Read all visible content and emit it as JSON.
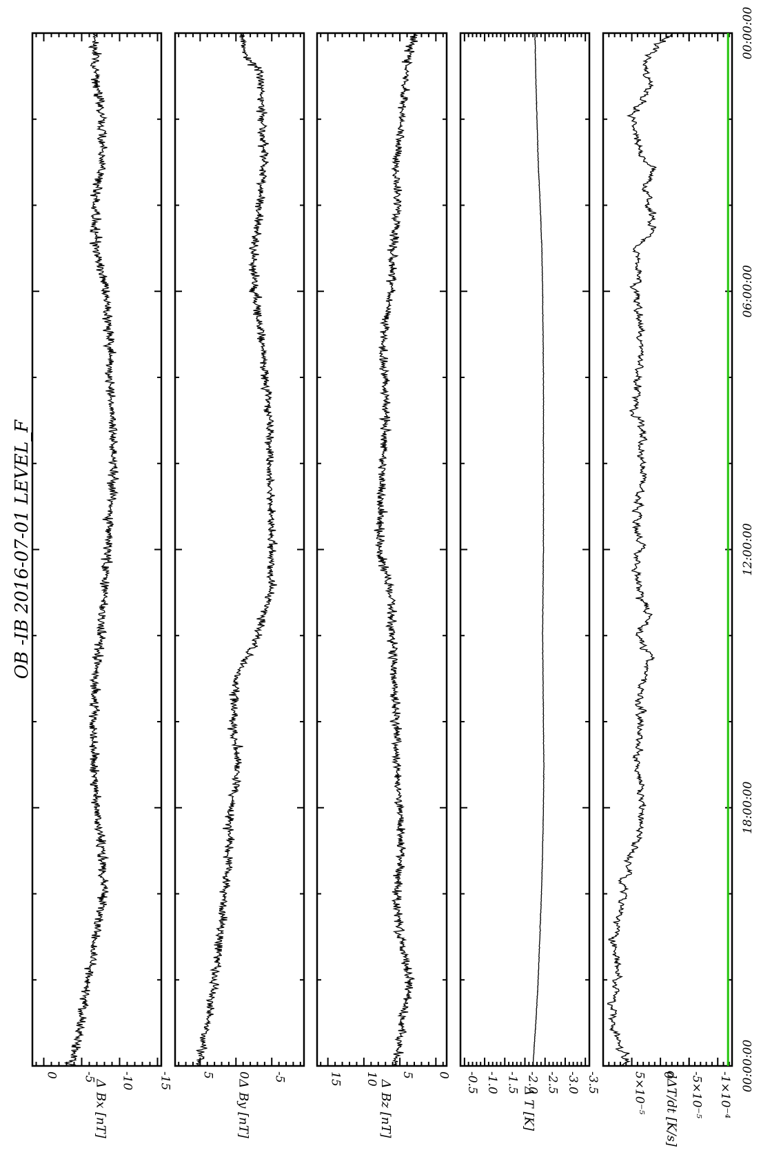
{
  "chart_data": {
    "type": "line",
    "title": "OB -IB  2016-07-01 LEVEL_F",
    "orientation": "rotated-90-clockwise",
    "time_axis": {
      "range": [
        0,
        24
      ],
      "tick_labels": [
        "00:00:00",
        "06:00:00",
        "12:00:00",
        "18:00:00",
        "00:00:00"
      ],
      "tick_values": [
        0,
        6,
        12,
        18,
        24
      ]
    },
    "panels": [
      {
        "id": "bx",
        "ylabel": "Δ Bx [nT]",
        "ylim": [
          -15.5,
          1.5
        ],
        "ticks": [
          {
            "v": 0,
            "label": "0"
          },
          {
            "v": -5,
            "label": "-5"
          },
          {
            "v": -10,
            "label": "-10"
          },
          {
            "v": -15,
            "label": "-15"
          }
        ],
        "series": [
          {
            "x": [
              0,
              1,
              2,
              3,
              4,
              5,
              6,
              7,
              8,
              9,
              10,
              11,
              12,
              13,
              14,
              15,
              16,
              17,
              18,
              19,
              20,
              21,
              22,
              23,
              24
            ],
            "y": [
              -6.6,
              -6.8,
              -7.6,
              -7.7,
              -6.7,
              -6.8,
              -8.2,
              -8.6,
              -8.7,
              -9.1,
              -9.2,
              -8.9,
              -8.4,
              -8.0,
              -7.5,
              -6.8,
              -6.5,
              -6.6,
              -6.9,
              -7.7,
              -7.9,
              -6.8,
              -5.8,
              -4.9,
              -3.7
            ]
          }
        ]
      },
      {
        "id": "by",
        "ylabel": "Δ By [nT]",
        "ylim": [
          -9.5,
          8.5
        ],
        "ticks": [
          {
            "v": 5,
            "label": "5"
          },
          {
            "v": 0,
            "label": "0"
          },
          {
            "v": -5,
            "label": "-5"
          }
        ],
        "series": [
          {
            "x": [
              0,
              0.5,
              1,
              2,
              3,
              4,
              5,
              6,
              7,
              8,
              9,
              10,
              11,
              12,
              13,
              14,
              15,
              16,
              17,
              18,
              19,
              20,
              21,
              22,
              23,
              24
            ],
            "y": [
              -0.4,
              -1.5,
              -3.5,
              -3.6,
              -4.0,
              -3.4,
              -2.5,
              -2.6,
              -3.5,
              -4.1,
              -4.8,
              -4.7,
              -4.9,
              -5.0,
              -4.7,
              -3.0,
              0.0,
              0.5,
              -0.3,
              0.7,
              1.0,
              1.5,
              2.2,
              3.0,
              4.0,
              5.2
            ]
          }
        ]
      },
      {
        "id": "bz",
        "ylabel": "Δ Bz [nT]",
        "ylim": [
          -1.5,
          16.5
        ],
        "ticks": [
          {
            "v": 15,
            "label": "15"
          },
          {
            "v": 10,
            "label": "10"
          },
          {
            "v": 5,
            "label": "5"
          },
          {
            "v": 0,
            "label": "0"
          }
        ],
        "series": [
          {
            "x": [
              0,
              1,
              2,
              3,
              4,
              5,
              6,
              7,
              8,
              9,
              10,
              11,
              12,
              13,
              14,
              15,
              16,
              17,
              18,
              19,
              20,
              21,
              22,
              23,
              24
            ],
            "y": [
              3.0,
              4.3,
              4.7,
              5.5,
              5.3,
              6.0,
              6.3,
              7.3,
              7.1,
              7.0,
              7.4,
              7.6,
              7.9,
              6.3,
              6.0,
              5.9,
              5.5,
              5.4,
              5.1,
              4.7,
              5.4,
              5.0,
              3.6,
              4.8,
              5.4
            ]
          }
        ]
      },
      {
        "id": "dt",
        "ylabel": "Δ T [K]",
        "ylim": [
          -3.6,
          -0.4
        ],
        "ticks": [
          {
            "v": -0.5,
            "label": "-0.5"
          },
          {
            "v": -1.0,
            "label": "-1.0"
          },
          {
            "v": -1.5,
            "label": "-1.5"
          },
          {
            "v": -2.0,
            "label": "-2.0"
          },
          {
            "v": -2.5,
            "label": "-2.5"
          },
          {
            "v": -3.0,
            "label": "-3.0"
          },
          {
            "v": -3.5,
            "label": "-3.5"
          }
        ],
        "series": [
          {
            "x": [
              0,
              1,
              2,
              3,
              4,
              5,
              6,
              7,
              8,
              9,
              10,
              11,
              12,
              13,
              14,
              15,
              16,
              17,
              18,
              19,
              20,
              21,
              22,
              23,
              24
            ],
            "y": [
              -2.25,
              -2.27,
              -2.3,
              -2.33,
              -2.38,
              -2.42,
              -2.44,
              -2.45,
              -2.46,
              -2.46,
              -2.46,
              -2.46,
              -2.46,
              -2.45,
              -2.44,
              -2.45,
              -2.46,
              -2.47,
              -2.46,
              -2.44,
              -2.41,
              -2.37,
              -2.33,
              -2.27,
              -2.2
            ]
          }
        ]
      },
      {
        "id": "dtdt",
        "ylabel": "dΔT/dt [K/s]",
        "ylim": [
          -0.000125,
          0.0001
        ],
        "ticks": [
          {
            "v": 5e-05,
            "label": "5×10⁻⁵"
          },
          {
            "v": 0,
            "label": "0"
          },
          {
            "v": -5e-05,
            "label": "-5×10⁻⁵"
          },
          {
            "v": -0.0001,
            "label": "-1×10⁻⁴"
          }
        ],
        "series": [
          {
            "x": [
              0,
              0.7,
              1.2,
              2.0,
              2.8,
              3.1,
              3.6,
              4.5,
              5.0,
              5.5,
              6.0,
              6.5,
              7.5,
              8.5,
              9.5,
              10.5,
              11.0,
              12.0,
              12.5,
              13.0,
              13.4,
              14.0,
              14.5,
              15.5,
              16.0,
              17.0,
              17.3,
              18.0,
              18.5,
              19.0,
              19.5,
              20.0,
              21.0,
              22.0,
              22.5,
              23.0,
              23.5,
              24.0
            ],
            "y": [
              -2e-05,
              3e-05,
              2e-05,
              5e-05,
              3.5e-05,
              1e-05,
              3e-05,
              1e-05,
              4.5e-05,
              4e-05,
              4.2e-05,
              3.5e-05,
              3e-05,
              4e-05,
              3.5e-05,
              3e-05,
              4e-05,
              3.5e-05,
              4.5e-05,
              3.5e-05,
              2e-05,
              3.5e-05,
              2e-05,
              3.8e-05,
              3.5e-05,
              4e-05,
              3.6e-05,
              3e-05,
              3.5e-05,
              5e-05,
              5.5e-05,
              6.5e-05,
              8e-05,
              7.5e-05,
              8.3e-05,
              8e-05,
              7e-05,
              6e-05
            ]
          },
          {
            "x": [
              0,
              24
            ],
            "y": [
              -0.000118,
              -0.000118
            ]
          }
        ]
      }
    ],
    "colors": {
      "trace": "#000000",
      "reference_line": "#22c40a"
    }
  }
}
